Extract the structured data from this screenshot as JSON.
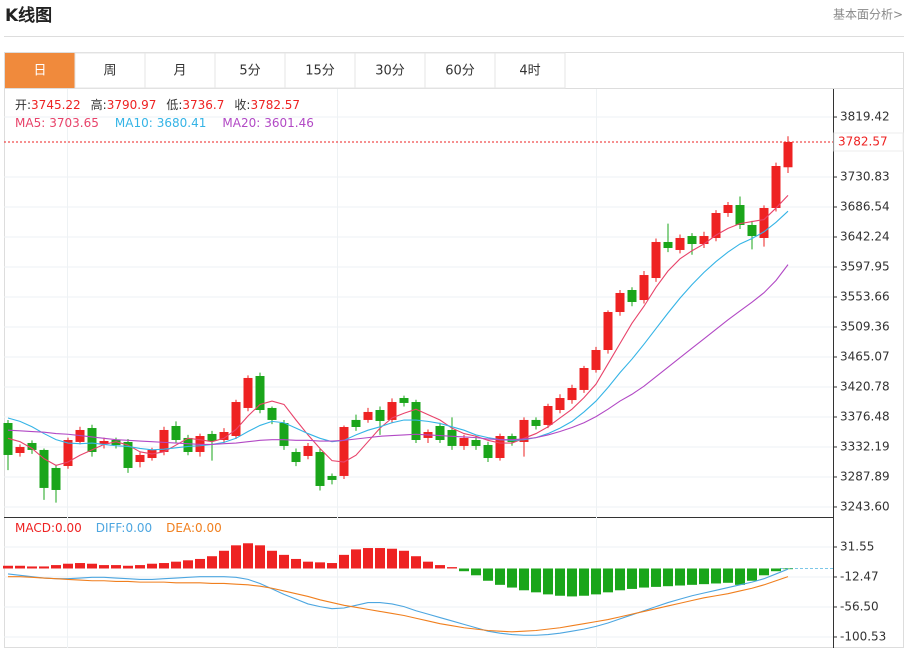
{
  "header": {
    "title": "K线图",
    "link": "基本面分析>"
  },
  "tabs": [
    "日",
    "周",
    "月",
    "5分",
    "15分",
    "30分",
    "60分",
    "4时"
  ],
  "active_tab": 0,
  "chart_data": [
    {
      "type": "candlestick",
      "up_color": "#ee2222",
      "down_color": "#1aa51a",
      "ohlc_labels": [
        "开:",
        "高:",
        "低:",
        "收:"
      ],
      "ylim": [
        3228.8,
        3860.8
      ],
      "yticks": [
        3819.42,
        3730.83,
        3686.54,
        3642.24,
        3597.95,
        3553.66,
        3509.36,
        3465.07,
        3420.78,
        3376.48,
        3332.19,
        3287.89,
        {
          "value": 3243.6,
          "label": "3243.60"
        }
      ],
      "open": [
        3367.6,
        3323.3,
        3338.1,
        3327.8,
        3301.2,
        3304.1,
        3339.6,
        3360.2,
        3336.6,
        3342.5,
        3339.6,
        3310.0,
        3315.9,
        3324.8,
        3363.2,
        3345.5,
        3324.8,
        3351.4,
        3342.5,
        3348.4,
        3389.8,
        3437.0,
        3389.8,
        3367.6,
        3324.8,
        3318.9,
        3324.8,
        3289.4,
        3289.4,
        3372.1,
        3372.1,
        3386.8,
        3372.1,
        3404.5,
        3398.6,
        3345.5,
        3363.2,
        3357.3,
        3333.7,
        3342.5,
        3335.1,
        3315.9,
        3348.4,
        3339.6,
        3372.1,
        3364.7,
        3386.8,
        3401.5,
        3416.4,
        3445.9,
        3475.4,
        3531.5,
        3564.0,
        3549.2,
        3581.7,
        3634.9,
        3623.1,
        3643.7,
        3631.9,
        3640.8,
        3677.7,
        3689.5,
        3660.0,
        3640.8,
        3685.1,
        3745.22
      ],
      "high": [
        3372.1,
        3336,
        3342,
        3330,
        3306,
        3346,
        3362,
        3365,
        3346,
        3346,
        3344,
        3324,
        3331,
        3362,
        3370,
        3350,
        3352,
        3356,
        3360,
        3402,
        3438,
        3442,
        3392,
        3372,
        3330,
        3338,
        3330,
        3293,
        3364,
        3380,
        3390,
        3392,
        3404,
        3408,
        3402,
        3358,
        3368,
        3376,
        3350,
        3348,
        3340,
        3352,
        3352,
        3376,
        3376,
        3396,
        3410,
        3424,
        3452,
        3480,
        3534,
        3564,
        3568,
        3592,
        3640,
        3662,
        3646,
        3648,
        3650,
        3682,
        3694,
        3702,
        3666,
        3689,
        3752,
        3790.97
      ],
      "low": [
        3298,
        3318,
        3322,
        3254,
        3250,
        3300,
        3336,
        3318,
        3330,
        3330,
        3294,
        3302,
        3312,
        3320,
        3338,
        3320,
        3318,
        3312,
        3338,
        3344,
        3385,
        3382,
        3366,
        3328,
        3304,
        3314,
        3268,
        3277,
        3285,
        3356,
        3368,
        3350,
        3368,
        3392,
        3338,
        3338,
        3338,
        3328,
        3328,
        3328,
        3310,
        3312,
        3334,
        3318,
        3358,
        3360,
        3382,
        3396,
        3412,
        3442,
        3470,
        3526,
        3540,
        3544,
        3576,
        3620,
        3618,
        3616,
        3626,
        3636,
        3672,
        3654,
        3624,
        3628,
        3680,
        3736.7
      ],
      "close": [
        3320.4,
        3332.2,
        3327.8,
        3271.7,
        3268.7,
        3342.5,
        3357.3,
        3324.8,
        3341.0,
        3335.1,
        3301.2,
        3320.4,
        3327.8,
        3357.3,
        3342.5,
        3324.8,
        3348.4,
        3341.0,
        3354.3,
        3398.6,
        3434.1,
        3386.8,
        3372.1,
        3333.7,
        3310.0,
        3333.7,
        3274.6,
        3283.5,
        3361.7,
        3361.7,
        3383.9,
        3370.6,
        3398.6,
        3397.2,
        3342.5,
        3354.3,
        3342.5,
        3333.7,
        3345.5,
        3333.7,
        3315.9,
        3348.4,
        3339.6,
        3372.1,
        3363.2,
        3392.7,
        3404.5,
        3419.3,
        3448.8,
        3475.4,
        3531.5,
        3559.6,
        3546.3,
        3586.1,
        3634.9,
        3626.0,
        3640.8,
        3631.9,
        3643.7,
        3677.7,
        3689.5,
        3660.0,
        3643.7,
        3685.1,
        3747.1,
        3782.57
      ],
      "series": [
        {
          "name": "MA5:",
          "color": "#e8436a",
          "values": [
            3345,
            3340,
            3330,
            3315,
            3305,
            3310,
            3320,
            3328,
            3336,
            3340,
            3335,
            3325,
            3322,
            3325,
            3335,
            3345,
            3343,
            3340,
            3345,
            3358,
            3378,
            3395,
            3400,
            3395,
            3372,
            3350,
            3330,
            3312,
            3310,
            3320,
            3340,
            3360,
            3375,
            3382,
            3388,
            3380,
            3372,
            3360,
            3352,
            3348,
            3342,
            3338,
            3338,
            3345,
            3352,
            3362,
            3375,
            3388,
            3405,
            3425,
            3455,
            3485,
            3515,
            3540,
            3568,
            3592,
            3610,
            3622,
            3632,
            3645,
            3655,
            3662,
            3665,
            3668,
            3685,
            3703.65
          ]
        },
        {
          "name": "MA10:",
          "color": "#35b4e6",
          "values": [
            3375,
            3370,
            3362,
            3352,
            3343,
            3338,
            3337,
            3338,
            3336,
            3334,
            3333,
            3330,
            3328,
            3329,
            3331,
            3333,
            3334,
            3336,
            3339,
            3345,
            3355,
            3364,
            3370,
            3368,
            3360,
            3352,
            3345,
            3340,
            3342,
            3350,
            3357,
            3362,
            3368,
            3372,
            3372,
            3370,
            3367,
            3362,
            3357,
            3350,
            3346,
            3343,
            3342,
            3343,
            3346,
            3352,
            3360,
            3370,
            3384,
            3400,
            3420,
            3442,
            3462,
            3484,
            3507,
            3530,
            3552,
            3572,
            3590,
            3606,
            3620,
            3632,
            3640,
            3650,
            3664,
            3680.41
          ]
        },
        {
          "name": "MA20:",
          "color": "#b249c5",
          "values": [
            3357,
            3356,
            3355,
            3354,
            3352,
            3351,
            3349,
            3347,
            3345,
            3343,
            3342,
            3341,
            3340,
            3339,
            3338,
            3337,
            3336,
            3336,
            3337,
            3338,
            3340,
            3342,
            3343,
            3343,
            3342,
            3342,
            3341,
            3341,
            3342,
            3344,
            3346,
            3348,
            3349,
            3350,
            3351,
            3350,
            3349,
            3348,
            3347,
            3346,
            3344,
            3343,
            3343,
            3344,
            3346,
            3350,
            3355,
            3361,
            3368,
            3377,
            3388,
            3400,
            3410,
            3422,
            3436,
            3450,
            3464,
            3478,
            3492,
            3506,
            3520,
            3533,
            3546,
            3560,
            3578,
            3601.46
          ]
        }
      ]
    },
    {
      "type": "macd",
      "name": "MACD:",
      "readout_label": "0.00",
      "up_color": "#ee2222",
      "down_color": "#1aa51a",
      "ylim": [
        -116.7,
        74.1
      ],
      "yticks": [
        31.55,
        -12.47,
        {
          "value": -56.5,
          "label": "-56.50"
        },
        -100.53
      ],
      "values": [
        4,
        4,
        3,
        3,
        5,
        7,
        8,
        7,
        5,
        5,
        4,
        5,
        7,
        8,
        10,
        12,
        14,
        18,
        26,
        34,
        37,
        34,
        26,
        20,
        14,
        10,
        9,
        8,
        20,
        28,
        30,
        30,
        29,
        26,
        18,
        10,
        5,
        2,
        -4,
        -10,
        -18,
        -24,
        -28,
        -32,
        -35,
        -38,
        -40,
        -41,
        -40,
        -38,
        -35,
        -32,
        -30,
        -28,
        -27,
        -26,
        -25,
        -24,
        -23,
        -22,
        -21,
        -24,
        -18,
        -10,
        -4,
        -1
      ],
      "series": [
        {
          "name": "DIFF:",
          "readout_label": "0.00",
          "color": "#4da6e0",
          "values": [
            -8,
            -10,
            -12,
            -14,
            -15,
            -15,
            -14,
            -13,
            -13,
            -14,
            -15,
            -16,
            -16,
            -15,
            -14,
            -13,
            -12,
            -12,
            -12,
            -13,
            -16,
            -22,
            -30,
            -38,
            -45,
            -52,
            -56,
            -59,
            -58,
            -54,
            -50,
            -50,
            -52,
            -56,
            -62,
            -67,
            -72,
            -77,
            -82,
            -87,
            -92,
            -95,
            -97,
            -98,
            -98,
            -97,
            -95,
            -92,
            -89,
            -85,
            -80,
            -74,
            -68,
            -62,
            -56,
            -50,
            -45,
            -40,
            -36,
            -32,
            -28,
            -24,
            -20,
            -15,
            -8,
            -1
          ]
        },
        {
          "name": "DEA:",
          "readout_label": "0.00",
          "color": "#f07f1e",
          "values": [
            -12,
            -12,
            -13,
            -14,
            -15,
            -16,
            -17,
            -18,
            -18,
            -19,
            -19,
            -20,
            -20,
            -20,
            -21,
            -21,
            -21,
            -22,
            -22,
            -23,
            -24,
            -26,
            -29,
            -33,
            -37,
            -41,
            -46,
            -50,
            -54,
            -57,
            -60,
            -63,
            -66,
            -69,
            -73,
            -77,
            -81,
            -84,
            -87,
            -89,
            -91,
            -92,
            -93,
            -92,
            -91,
            -89,
            -87,
            -84,
            -81,
            -78,
            -75,
            -71,
            -67,
            -63,
            -59,
            -55,
            -51,
            -47,
            -43,
            -40,
            -37,
            -33,
            -29,
            -24,
            -18,
            -12
          ]
        }
      ]
    }
  ]
}
